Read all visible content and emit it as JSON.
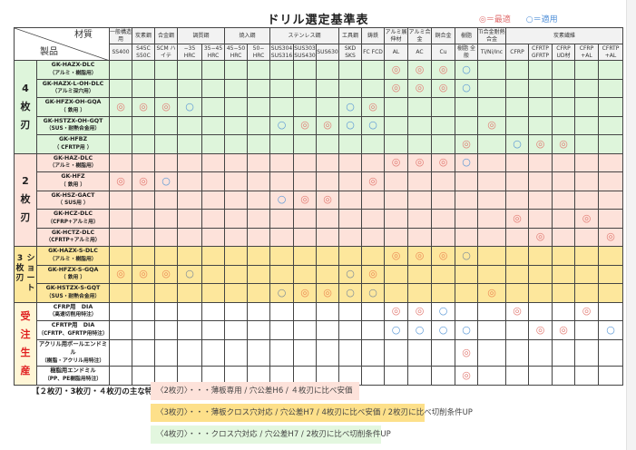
{
  "title": "ドリル選定基準表",
  "legend": {
    "best": "◎＝最適",
    "ok": "○＝適用"
  },
  "corner": {
    "material": "材質",
    "product": "製品"
  },
  "header_groups": [
    {
      "label": "一般構造用",
      "span": 1
    },
    {
      "label": "炭素鋼",
      "span": 1
    },
    {
      "label": "合金鋼",
      "span": 1
    },
    {
      "label": "調質鋼",
      "span": 2
    },
    {
      "label": "焼入鋼",
      "span": 2
    },
    {
      "label": "ステンレス鋼",
      "span": 3
    },
    {
      "label": "工具鋼",
      "span": 1
    },
    {
      "label": "鋳鉄",
      "span": 1
    },
    {
      "label": "アルミ展伸材",
      "span": 1
    },
    {
      "label": "アルミ合金",
      "span": 1
    },
    {
      "label": "銅合金",
      "span": 1
    },
    {
      "label": "樹脂",
      "span": 1
    },
    {
      "label": "Ti合金耐熱合金",
      "span": 1
    },
    {
      "label": "炭素繊維",
      "span": 5
    }
  ],
  "columns": [
    "SS400",
    "S45C S50C",
    "SCM ハイテ",
    "−35 HRC",
    "35−45 HRC",
    "45−50 HRC",
    "50− HRC",
    "SUS304 SUS316",
    "SUS303 SUS430",
    "SUS630",
    "SKD SKS",
    "FC FCD",
    "AL",
    "AC",
    "Cu",
    "樹脂 全般",
    "Ti/Ni/Inc",
    "CFRP",
    "CFRTP GFRTP",
    "CFRP UD材",
    "CFRP +AL",
    "CFRTP +AL"
  ],
  "sections": [
    {
      "group": "4 枚 刃",
      "cls": "s4",
      "rows": [
        {
          "name": "GK-HAZX-DLC",
          "sub": "（アルミ・樹脂用）",
          "marks": [
            "",
            "",
            "",
            "",
            "",
            "",
            "",
            "",
            "",
            "",
            "",
            "",
            "◎",
            "◎",
            "◎",
            "○",
            "",
            "",
            "",
            "",
            "",
            ""
          ]
        },
        {
          "name": "GK-HAZX-L-OH-DLC",
          "sub": "（アルミ深穴用）",
          "marks": [
            "",
            "",
            "",
            "",
            "",
            "",
            "",
            "",
            "",
            "",
            "",
            "",
            "◎",
            "◎",
            "◎",
            "○",
            "",
            "",
            "",
            "",
            "",
            ""
          ]
        },
        {
          "name": "GK-HFZX-OH-GQA",
          "sub": "（ 鉄用 ）",
          "marks": [
            "◎",
            "◎",
            "◎",
            "○",
            "",
            "",
            "",
            "",
            "",
            "",
            "○",
            "◎",
            "",
            "",
            "",
            "",
            "",
            "",
            "",
            "",
            "",
            ""
          ]
        },
        {
          "name": "GK-HSTZX-OH-GQT",
          "sub": "（SUS・耐熱合金用）",
          "marks": [
            "",
            "",
            "",
            "",
            "",
            "",
            "",
            "○",
            "◎",
            "◎",
            "○",
            "○",
            "",
            "",
            "",
            "",
            "◎",
            "",
            "",
            "",
            "",
            ""
          ]
        },
        {
          "name": "GK-HFBZ",
          "sub": "（ CFRTP用 ）",
          "marks": [
            "",
            "",
            "",
            "",
            "",
            "",
            "",
            "",
            "",
            "",
            "",
            "",
            "",
            "",
            "",
            "◎",
            "",
            "○",
            "◎",
            "◎",
            "",
            ""
          ]
        }
      ]
    },
    {
      "group": "2 枚 刃",
      "cls": "s2",
      "rows": [
        {
          "name": "GK-HAZ-DLC",
          "sub": "（アルミ・樹脂用）",
          "marks": [
            "",
            "",
            "",
            "",
            "",
            "",
            "",
            "",
            "",
            "",
            "",
            "",
            "◎",
            "◎",
            "◎",
            "○",
            "",
            "",
            "",
            "",
            "",
            ""
          ]
        },
        {
          "name": "GK-HFZ",
          "sub": "（ 鉄用 ）",
          "marks": [
            "◎",
            "◎",
            "○",
            "",
            "",
            "",
            "",
            "",
            "",
            "",
            "",
            "◎",
            "",
            "",
            "",
            "",
            "",
            "",
            "",
            "",
            "",
            ""
          ]
        },
        {
          "name": "GK-HSZ-GACT",
          "sub": "（ SUS用 ）",
          "marks": [
            "",
            "",
            "",
            "",
            "",
            "",
            "",
            "○",
            "◎",
            "◎",
            "",
            "",
            "",
            "",
            "",
            "",
            "",
            "",
            "",
            "",
            "",
            ""
          ]
        },
        {
          "name": "GK-HCZ-DLC",
          "sub": "（CFRP+アルミ用）",
          "marks": [
            "",
            "",
            "",
            "",
            "",
            "",
            "",
            "",
            "",
            "",
            "",
            "",
            "",
            "",
            "",
            "",
            "",
            "◎",
            "",
            "",
            "◎",
            ""
          ]
        },
        {
          "name": "GK-HCTZ-DLC",
          "sub": "（CFRTP+アルミ用）",
          "marks": [
            "",
            "",
            "",
            "",
            "",
            "",
            "",
            "",
            "",
            "",
            "",
            "",
            "",
            "",
            "",
            "",
            "",
            "",
            "◎",
            "",
            "",
            "◎"
          ]
        }
      ]
    },
    {
      "group": "3 枚 刃",
      "group2": "ショート",
      "cls": "s3",
      "rows": [
        {
          "name": "GK-HAZX-S-DLC",
          "sub": "（アルミ・樹脂用）",
          "marks": [
            "",
            "",
            "",
            "",
            "",
            "",
            "",
            "",
            "",
            "",
            "",
            "",
            "◎",
            "◎",
            "◎",
            "○",
            "",
            "",
            "",
            "",
            "",
            ""
          ]
        },
        {
          "name": "GK-HFZX-S-GQA",
          "sub": "（ 鉄用 ）",
          "marks": [
            "◎",
            "◎",
            "◎",
            "○",
            "",
            "",
            "",
            "",
            "",
            "",
            "○",
            "◎",
            "",
            "",
            "",
            "",
            "",
            "",
            "",
            "",
            "",
            ""
          ]
        },
        {
          "name": "GK-HSTZX-S-GQT",
          "sub": "（SUS・耐熱合金用）",
          "marks": [
            "",
            "",
            "",
            "",
            "",
            "",
            "",
            "○",
            "◎",
            "◎",
            "○",
            "○",
            "",
            "",
            "",
            "",
            "◎",
            "",
            "",
            "",
            "",
            ""
          ]
        }
      ]
    },
    {
      "group": "受 注 生 産",
      "cls": "so",
      "rows": [
        {
          "name": "CFRP用　DIA",
          "sub": "（高速切削用特注）",
          "marks": [
            "",
            "",
            "",
            "",
            "",
            "",
            "",
            "",
            "",
            "",
            "",
            "",
            "◎",
            "◎",
            "○",
            "",
            "",
            "◎",
            "",
            "",
            "◎",
            ""
          ]
        },
        {
          "name": "CFRTP用　DIA",
          "sub": "（CFRTP、GFRTP用特注）",
          "marks": [
            "",
            "",
            "",
            "",
            "",
            "",
            "",
            "",
            "",
            "",
            "",
            "",
            "○",
            "○",
            "○",
            "○",
            "",
            "",
            "◎",
            "◎",
            "",
            "○"
          ]
        },
        {
          "name": "アクリル用ボールエンドミル",
          "sub": "（樹脂・アクリル用特注）",
          "marks": [
            "",
            "",
            "",
            "",
            "",
            "",
            "",
            "",
            "",
            "",
            "",
            "",
            "",
            "",
            "",
            "◎",
            "",
            "",
            "",
            "",
            "",
            ""
          ]
        },
        {
          "name": "樹脂用エンドミル",
          "sub": "（PP、PE樹脂用特注）",
          "marks": [
            "",
            "",
            "",
            "",
            "",
            "",
            "",
            "",
            "",
            "",
            "",
            "",
            "",
            "",
            "",
            "◎",
            "",
            "",
            "",
            "",
            "",
            ""
          ]
        }
      ]
    }
  ],
  "notes": {
    "heading": "【２枚刃・3枚刃・４枚刃の主な特長】",
    "lines": [
      {
        "text": "〈2枚刃〉・・・薄板専用 / 穴公差H6 / ４枚刃に比べ安価",
        "color": "#fde2da"
      },
      {
        "text": "〈3枚刃〉・・・薄板クロス穴対応 / 穴公差H7 / 4枚刃に比べ安価 / 2枚刃に比べ切削条件UP",
        "color": "#fde08a"
      },
      {
        "text": "〈4枚刃〉・・・クロス穴対応 / 穴公差H7 / 2枚刃に比べ切削条件UP",
        "color": "#e3f7df"
      }
    ]
  }
}
